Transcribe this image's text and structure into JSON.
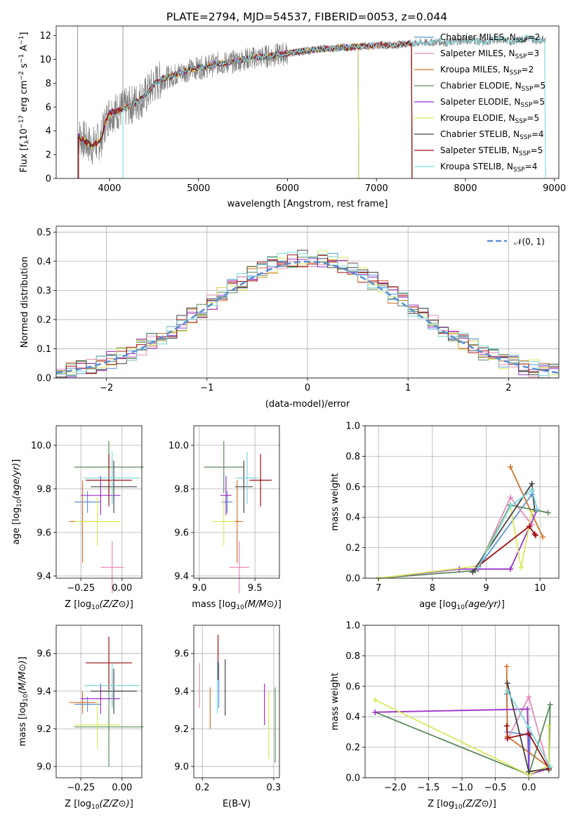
{
  "series_legend": [
    {
      "name": "Chabrier MILES",
      "nssp": "2",
      "color": "#5b93d8"
    },
    {
      "name": "Salpeter MILES",
      "nssp": "3",
      "color": "#e48ab8"
    },
    {
      "name": "Kroupa MILES",
      "nssp": "2",
      "color": "#d2742e"
    },
    {
      "name": "Chabrier ELODIE",
      "nssp": "5",
      "color": "#5c8a5c"
    },
    {
      "name": "Salpeter ELODIE",
      "nssp": "5",
      "color": "#9b30c8"
    },
    {
      "name": "Kroupa ELODIE",
      "nssp": "5",
      "color": "#d8ea5a"
    },
    {
      "name": "Chabrier STELIB",
      "nssp": "4",
      "color": "#444444"
    },
    {
      "name": "Salpeter STELIB",
      "nssp": "5",
      "color": "#a01010"
    },
    {
      "name": "Kroupa STELIB",
      "nssp": "4",
      "color": "#7ad8dc"
    }
  ],
  "chart_data": [
    {
      "id": "spectrum",
      "type": "line",
      "title": "PLATE=2794, MJD=54537, FIBERID=0053, z=0.044",
      "xlabel": "wavelength [Angstrom, rest frame]",
      "ylabel": "Flux [f_λ 10^-17 erg cm^-2 s^-1 A^-1]",
      "xlim": [
        3400,
        9050
      ],
      "ylim": [
        0,
        12.8
      ],
      "xticks": [
        "4000",
        "5000",
        "6000",
        "7000",
        "8000",
        "9000"
      ],
      "yticks": [
        "0",
        "2",
        "4",
        "6",
        "8",
        "10",
        "12"
      ],
      "data_color": "#808080",
      "data": {
        "x": [
          3640,
          3700,
          3800,
          3900,
          3950,
          4000,
          4100,
          4200,
          4300,
          4400,
          4500,
          4600,
          4700,
          4800,
          4900,
          5000,
          5100,
          5200,
          5300,
          5400,
          5500,
          5600,
          5700,
          5800,
          5900,
          6000,
          6100,
          6200,
          6300,
          6400,
          6500,
          6600,
          6700,
          6800,
          6900,
          7000,
          7100,
          7200,
          7300,
          7400,
          7500,
          7600,
          7700,
          7800,
          7900,
          8000,
          8100,
          8200,
          8300,
          8400,
          8500,
          8600,
          8700,
          8800,
          8900
        ],
        "y": [
          3.6,
          3.3,
          2.7,
          3.2,
          4.6,
          5.5,
          5.7,
          6.0,
          6.4,
          6.9,
          7.9,
          8.4,
          8.6,
          8.9,
          9.1,
          9.3,
          9.4,
          9.6,
          9.7,
          9.8,
          10.0,
          10.1,
          10.2,
          10.3,
          10.4,
          10.5,
          10.6,
          10.7,
          10.8,
          10.9,
          10.9,
          11.0,
          11.0,
          11.1,
          11.1,
          11.2,
          11.2,
          11.2,
          11.3,
          11.3,
          11.4,
          11.4,
          11.5,
          11.4,
          11.5,
          11.6,
          11.6,
          11.4,
          11.6,
          11.7,
          11.5,
          11.6,
          11.8,
          11.6,
          11.7
        ]
      },
      "model_end_x": [
        7400,
        7400,
        7400,
        6800,
        6800,
        6800,
        7400,
        7400,
        8900
      ],
      "model_low_x": [
        3650,
        3650,
        3650,
        3650,
        3650,
        3650,
        3650,
        3650,
        4150
      ],
      "legend_location": "upper right"
    },
    {
      "id": "residuals",
      "type": "histogram",
      "xlabel": "(data-model)/error",
      "ylabel": "Normed distribution",
      "xlim": [
        -2.5,
        2.5
      ],
      "ylim": [
        0,
        0.52
      ],
      "xticks": [
        "−2",
        "−1",
        "0",
        "1",
        "2"
      ],
      "yticks": [
        "0.0",
        "0.1",
        "0.2",
        "0.3",
        "0.4",
        "0.5"
      ],
      "bin_width": 0.1,
      "reference_curve": {
        "label": "𝒩(0, 1)",
        "mean": 0,
        "sigma": 1,
        "color": "#5b8fd6"
      },
      "legend_location": "upper right"
    },
    {
      "id": "age_vs_Z",
      "type": "errorbar",
      "xlabel": "Z [log10(Z/Z⊙)]",
      "ylabel": "age [log10(age/yr)]",
      "xlim": [
        -0.4,
        0.12
      ],
      "ylim": [
        9.39,
        10.09
      ],
      "xticks": [
        "−0.25",
        "0.00"
      ],
      "yticks": [
        "9.4",
        "9.6",
        "9.8",
        "10.0"
      ],
      "points": [
        {
          "x": -0.21,
          "y": 9.74,
          "xerr": 0.08,
          "yerr": 0.05
        },
        {
          "x": -0.06,
          "y": 9.44,
          "xerr": 0.07,
          "yerr": 0.12
        },
        {
          "x": -0.24,
          "y": 9.65,
          "xerr": 0.08,
          "yerr": 0.19
        },
        {
          "x": -0.08,
          "y": 9.9,
          "xerr": 0.21,
          "yerr": 0.12
        },
        {
          "x": -0.13,
          "y": 9.77,
          "xerr": 0.12,
          "yerr": 0.09
        },
        {
          "x": -0.15,
          "y": 9.65,
          "xerr": 0.14,
          "yerr": 0.11
        },
        {
          "x": -0.05,
          "y": 9.81,
          "xerr": 0.14,
          "yerr": 0.12
        },
        {
          "x": -0.08,
          "y": 9.84,
          "xerr": 0.14,
          "yerr": 0.12
        },
        {
          "x": -0.06,
          "y": 9.85,
          "xerr": 0.17,
          "yerr": 0.12
        }
      ]
    },
    {
      "id": "age_vs_mass",
      "type": "errorbar",
      "xlabel": "mass [log10(M/M⊙)]",
      "ylabel": "",
      "xlim": [
        8.95,
        9.72
      ],
      "ylim": [
        9.39,
        10.09
      ],
      "xticks": [
        "9.0",
        "9.5"
      ],
      "yticks": [
        "9.4",
        "9.6",
        "9.8",
        "10.0"
      ],
      "points": [
        {
          "x": 9.25,
          "y": 9.74,
          "xerr": 0.05,
          "yerr": 0.05
        },
        {
          "x": 9.36,
          "y": 9.44,
          "xerr": 0.09,
          "yerr": 0.12
        },
        {
          "x": 9.34,
          "y": 9.65,
          "xerr": 0.05,
          "yerr": 0.19
        },
        {
          "x": 9.22,
          "y": 9.9,
          "xerr": 0.18,
          "yerr": 0.12
        },
        {
          "x": 9.24,
          "y": 9.77,
          "xerr": 0.05,
          "yerr": 0.09
        },
        {
          "x": 9.22,
          "y": 9.65,
          "xerr": 0.1,
          "yerr": 0.11
        },
        {
          "x": 9.4,
          "y": 9.81,
          "xerr": 0.08,
          "yerr": 0.12
        },
        {
          "x": 9.55,
          "y": 9.84,
          "xerr": 0.1,
          "yerr": 0.12
        },
        {
          "x": 9.43,
          "y": 9.85,
          "xerr": 0.1,
          "yerr": 0.12
        }
      ]
    },
    {
      "id": "massweight_vs_age",
      "type": "line",
      "xlabel": "age [log10(age/yr)]",
      "ylabel": "mass weight",
      "xlim": [
        6.75,
        10.35
      ],
      "ylim": [
        0,
        1
      ],
      "xticks": [
        "7",
        "8",
        "9",
        "10"
      ],
      "yticks": [
        "0.0",
        "0.2",
        "0.4",
        "0.6",
        "0.8",
        "1.0"
      ],
      "series": [
        {
          "x": [
            8.85,
            9.85
          ],
          "y": [
            0.07,
            0.55
          ]
        },
        {
          "x": [
            8.85,
            9.45,
            9.85
          ],
          "y": [
            0.07,
            0.53,
            0.35
          ]
        },
        {
          "x": [
            9.45,
            10.05
          ],
          "y": [
            0.73,
            0.27
          ]
        },
        {
          "x": [
            7.0,
            8.8,
            9.45,
            10.15
          ],
          "y": [
            0.0,
            0.05,
            0.48,
            0.43
          ]
        },
        {
          "x": [
            7.0,
            8.5,
            8.85,
            9.45,
            9.95
          ],
          "y": [
            0.0,
            0.06,
            0.06,
            0.06,
            0.45
          ]
        },
        {
          "x": [
            7.0,
            8.85,
            9.45,
            9.65,
            9.85
          ],
          "y": [
            0.0,
            0.08,
            0.47,
            0.07,
            0.44
          ]
        },
        {
          "x": [
            8.75,
            9.85,
            9.9
          ],
          "y": [
            0.04,
            0.62,
            0.45
          ]
        },
        {
          "x": [
            8.85,
            9.8,
            9.9,
            9.92
          ],
          "y": [
            0.08,
            0.34,
            0.29,
            0.28
          ]
        },
        {
          "x": [
            8.85,
            9.45,
            9.85,
            9.95
          ],
          "y": [
            0.07,
            0.47,
            0.58,
            0.45
          ]
        }
      ]
    },
    {
      "id": "mass_vs_Z",
      "type": "errorbar",
      "xlabel": "Z [log10(Z/Z⊙)]",
      "ylabel": "mass [log10(M/M⊙)]",
      "xlim": [
        -0.4,
        0.12
      ],
      "ylim": [
        8.94,
        9.75
      ],
      "xticks": [
        "−0.25",
        "0.00"
      ],
      "yticks": [
        "9.0",
        "9.2",
        "9.4",
        "9.6"
      ],
      "points": [
        {
          "x": -0.21,
          "y": 9.33,
          "xerr": 0.08,
          "yerr": 0.04
        },
        {
          "x": -0.06,
          "y": 9.4,
          "xerr": 0.07,
          "yerr": 0.08
        },
        {
          "x": -0.24,
          "y": 9.34,
          "xerr": 0.08,
          "yerr": 0.06
        },
        {
          "x": -0.08,
          "y": 9.21,
          "xerr": 0.21,
          "yerr": 0.21
        },
        {
          "x": -0.13,
          "y": 9.36,
          "xerr": 0.12,
          "yerr": 0.08
        },
        {
          "x": -0.15,
          "y": 9.22,
          "xerr": 0.14,
          "yerr": 0.13
        },
        {
          "x": -0.05,
          "y": 9.4,
          "xerr": 0.14,
          "yerr": 0.12
        },
        {
          "x": -0.08,
          "y": 9.55,
          "xerr": 0.14,
          "yerr": 0.14
        },
        {
          "x": -0.06,
          "y": 9.43,
          "xerr": 0.17,
          "yerr": 0.12
        }
      ]
    },
    {
      "id": "mass_vs_EBV",
      "type": "errorbar",
      "xlabel": "E(B-V)",
      "ylabel": "",
      "xlim": [
        0.188,
        0.308
      ],
      "ylim": [
        8.94,
        9.75
      ],
      "xticks": [
        "0.2",
        "0.3"
      ],
      "yticks": [
        "9.6",
        "9.4",
        "9.2",
        "9.0"
      ],
      "points": [
        {
          "x": 0.223,
          "y": 9.43,
          "xerr": 0,
          "yerr": 0.12
        },
        {
          "x": 0.196,
          "y": 9.43,
          "xerr": 0,
          "yerr": 0.12
        },
        {
          "x": 0.211,
          "y": 9.31,
          "xerr": 0,
          "yerr": 0.11
        },
        {
          "x": 0.302,
          "y": 9.22,
          "xerr": 0,
          "yerr": 0.2
        },
        {
          "x": 0.287,
          "y": 9.33,
          "xerr": 0,
          "yerr": 0.11
        },
        {
          "x": 0.293,
          "y": 9.22,
          "xerr": 0,
          "yerr": 0.18
        },
        {
          "x": 0.232,
          "y": 9.42,
          "xerr": 0,
          "yerr": 0.15
        },
        {
          "x": 0.222,
          "y": 9.58,
          "xerr": 0,
          "yerr": 0.12
        },
        {
          "x": 0.221,
          "y": 9.42,
          "xerr": 0,
          "yerr": 0.14
        }
      ]
    },
    {
      "id": "massweight_vs_Z",
      "type": "line",
      "xlabel": "Z [log10(Z/Z⊙)]",
      "ylabel": "mass weight",
      "xlim": [
        -2.45,
        0.45
      ],
      "ylim": [
        0,
        1
      ],
      "xticks": [
        "−2.0",
        "−1.5",
        "−1.0",
        "−0.5",
        "0.0"
      ],
      "yticks": [
        "0.0",
        "0.2",
        "0.4",
        "0.6",
        "0.8",
        "1.0"
      ],
      "series": [
        {
          "x": [
            -0.33,
            -0.32,
            0.0,
            0.0,
            0.02
          ],
          "y": [
            0.55,
            0.3,
            0.28,
            0.04,
            0.28
          ]
        },
        {
          "x": [
            -0.32,
            0.0,
            0.3
          ],
          "y": [
            0.25,
            0.53,
            0.05
          ]
        },
        {
          "x": [
            -0.33,
            -0.32,
            0.3
          ],
          "y": [
            0.73,
            0.27,
            0.07
          ]
        },
        {
          "x": [
            -2.3,
            0.0,
            0.32,
            0.3
          ],
          "y": [
            0.43,
            0.02,
            0.48,
            0.05
          ]
        },
        {
          "x": [
            -2.3,
            -0.02,
            0.0,
            0.3
          ],
          "y": [
            0.43,
            0.45,
            0.02,
            0.06
          ]
        },
        {
          "x": [
            -2.3,
            0.0,
            0.3,
            0.3
          ],
          "y": [
            0.51,
            0.02,
            0.08,
            0.34
          ]
        },
        {
          "x": [
            -0.32,
            0.0,
            0.3
          ],
          "y": [
            0.62,
            0.04,
            0.06
          ]
        },
        {
          "x": [
            -0.33,
            -0.32,
            0.0,
            0.3
          ],
          "y": [
            0.34,
            0.26,
            0.29,
            0.06
          ]
        },
        {
          "x": [
            -0.32,
            0.0,
            0.32
          ],
          "y": [
            0.57,
            0.33,
            0.07
          ]
        }
      ]
    }
  ]
}
